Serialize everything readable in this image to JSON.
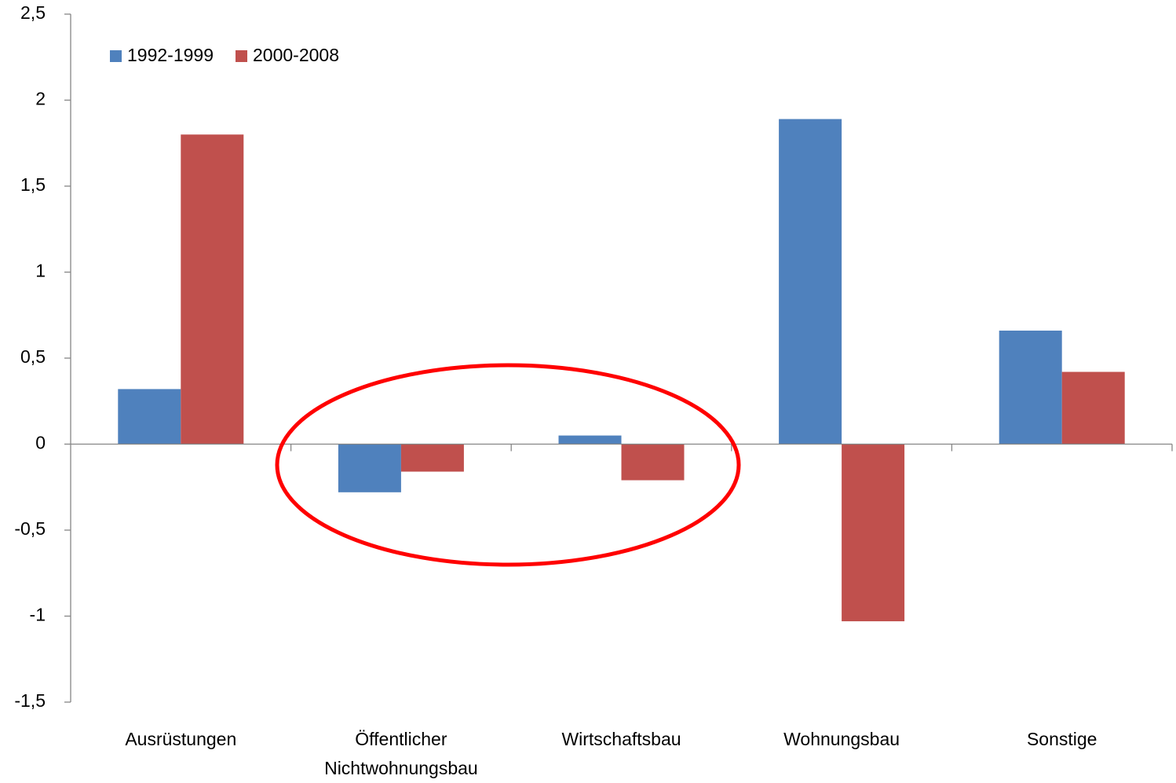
{
  "chart_data": {
    "type": "bar",
    "categories": [
      "Ausrüstungen",
      "Öffentlicher Nichtwohnungsbau",
      "Wirtschaftsbau",
      "Wohnungsbau",
      "Sonstige"
    ],
    "series": [
      {
        "name": "1992-1999",
        "color": "#4f81bd",
        "values": [
          0.32,
          -0.28,
          0.05,
          1.89,
          0.66
        ]
      },
      {
        "name": "2000-2008",
        "color": "#c0504d",
        "values": [
          1.8,
          -0.16,
          -0.21,
          -1.03,
          0.42
        ]
      }
    ],
    "ylim": [
      -1.5,
      2.5
    ],
    "yticks": [
      {
        "value": -1.5,
        "label": "-1,5"
      },
      -1,
      {
        "value": -0.5,
        "label": "-0,5"
      },
      0,
      {
        "value": 0.5,
        "label": "0,5"
      },
      1,
      {
        "value": 1.5,
        "label": "1,5"
      },
      2,
      {
        "value": 2.5,
        "label": "2,5"
      }
    ],
    "legend": "top-left"
  }
}
